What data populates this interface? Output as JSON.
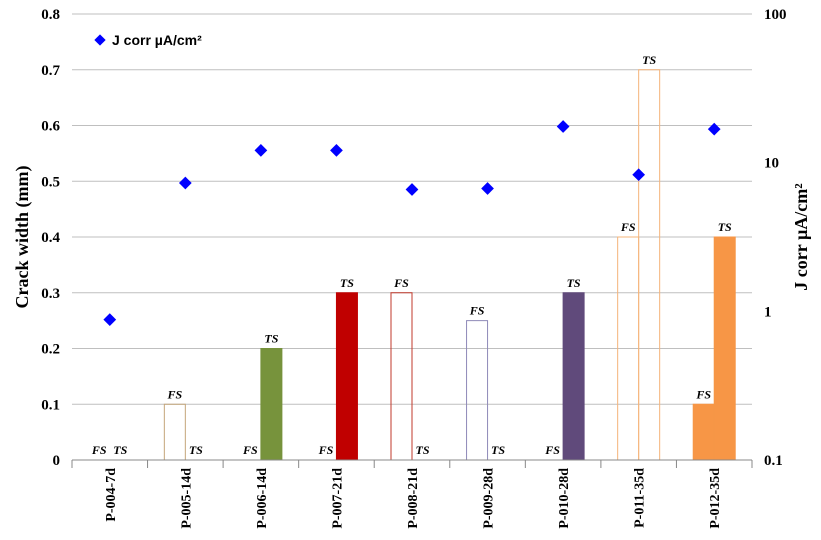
{
  "chart_data": {
    "type": "bar",
    "categories": [
      "P-004-7d",
      "P-005-14d",
      "P-006-14d",
      "P-007-21d",
      "P-008-21d",
      "P-009-28d",
      "P-010-28d",
      "P-011-35d",
      "P-012-35d"
    ],
    "series": [
      {
        "name": "FS",
        "values": [
          0,
          0.1,
          0,
          0,
          0.3,
          0.25,
          0,
          0.4,
          0.1
        ],
        "fills": [
          null,
          "none",
          null,
          null,
          "none",
          "none",
          null,
          "none",
          "#f79646"
        ],
        "strokes": [
          null,
          "#c4a57a",
          null,
          null,
          "#c0392b",
          "#8e89b8",
          null,
          "#f5b47a",
          "#f79646"
        ]
      },
      {
        "name": "TS",
        "values": [
          0,
          0,
          0.2,
          0.3,
          0,
          0,
          0.3,
          0.7,
          0.4
        ],
        "fills": [
          null,
          null,
          "#77933c",
          "#c00000",
          null,
          null,
          "#604a7b",
          "none",
          "#f79646"
        ],
        "strokes": [
          null,
          null,
          "#77933c",
          "#c00000",
          null,
          null,
          "#604a7b",
          "#f5b47a",
          "#f79646"
        ]
      },
      {
        "name": "J corr µA/cm²",
        "type": "scatter",
        "axis": "right",
        "values": [
          0.88,
          7.3,
          12.1,
          12.1,
          6.6,
          6.7,
          17.5,
          8.3,
          16.8
        ],
        "color": "#0000ff",
        "marker": "diamond"
      }
    ],
    "ylabel": "Crack width (mm)",
    "ylim": [
      0,
      0.8
    ],
    "yticks": [
      "0",
      "0.1",
      "0.2",
      "0.3",
      "0.4",
      "0.5",
      "0.6",
      "0.7",
      "0.8"
    ],
    "y2label": "J corr µA/cm²",
    "y2scale": "log",
    "y2lim": [
      0.1,
      100
    ],
    "y2ticks": [
      "0.1",
      "1",
      "10",
      "100"
    ],
    "grid": true,
    "legend": {
      "position": "top-left",
      "entries": [
        "J corr µA/cm²"
      ]
    },
    "bar_labels": [
      "FS",
      "TS"
    ]
  }
}
